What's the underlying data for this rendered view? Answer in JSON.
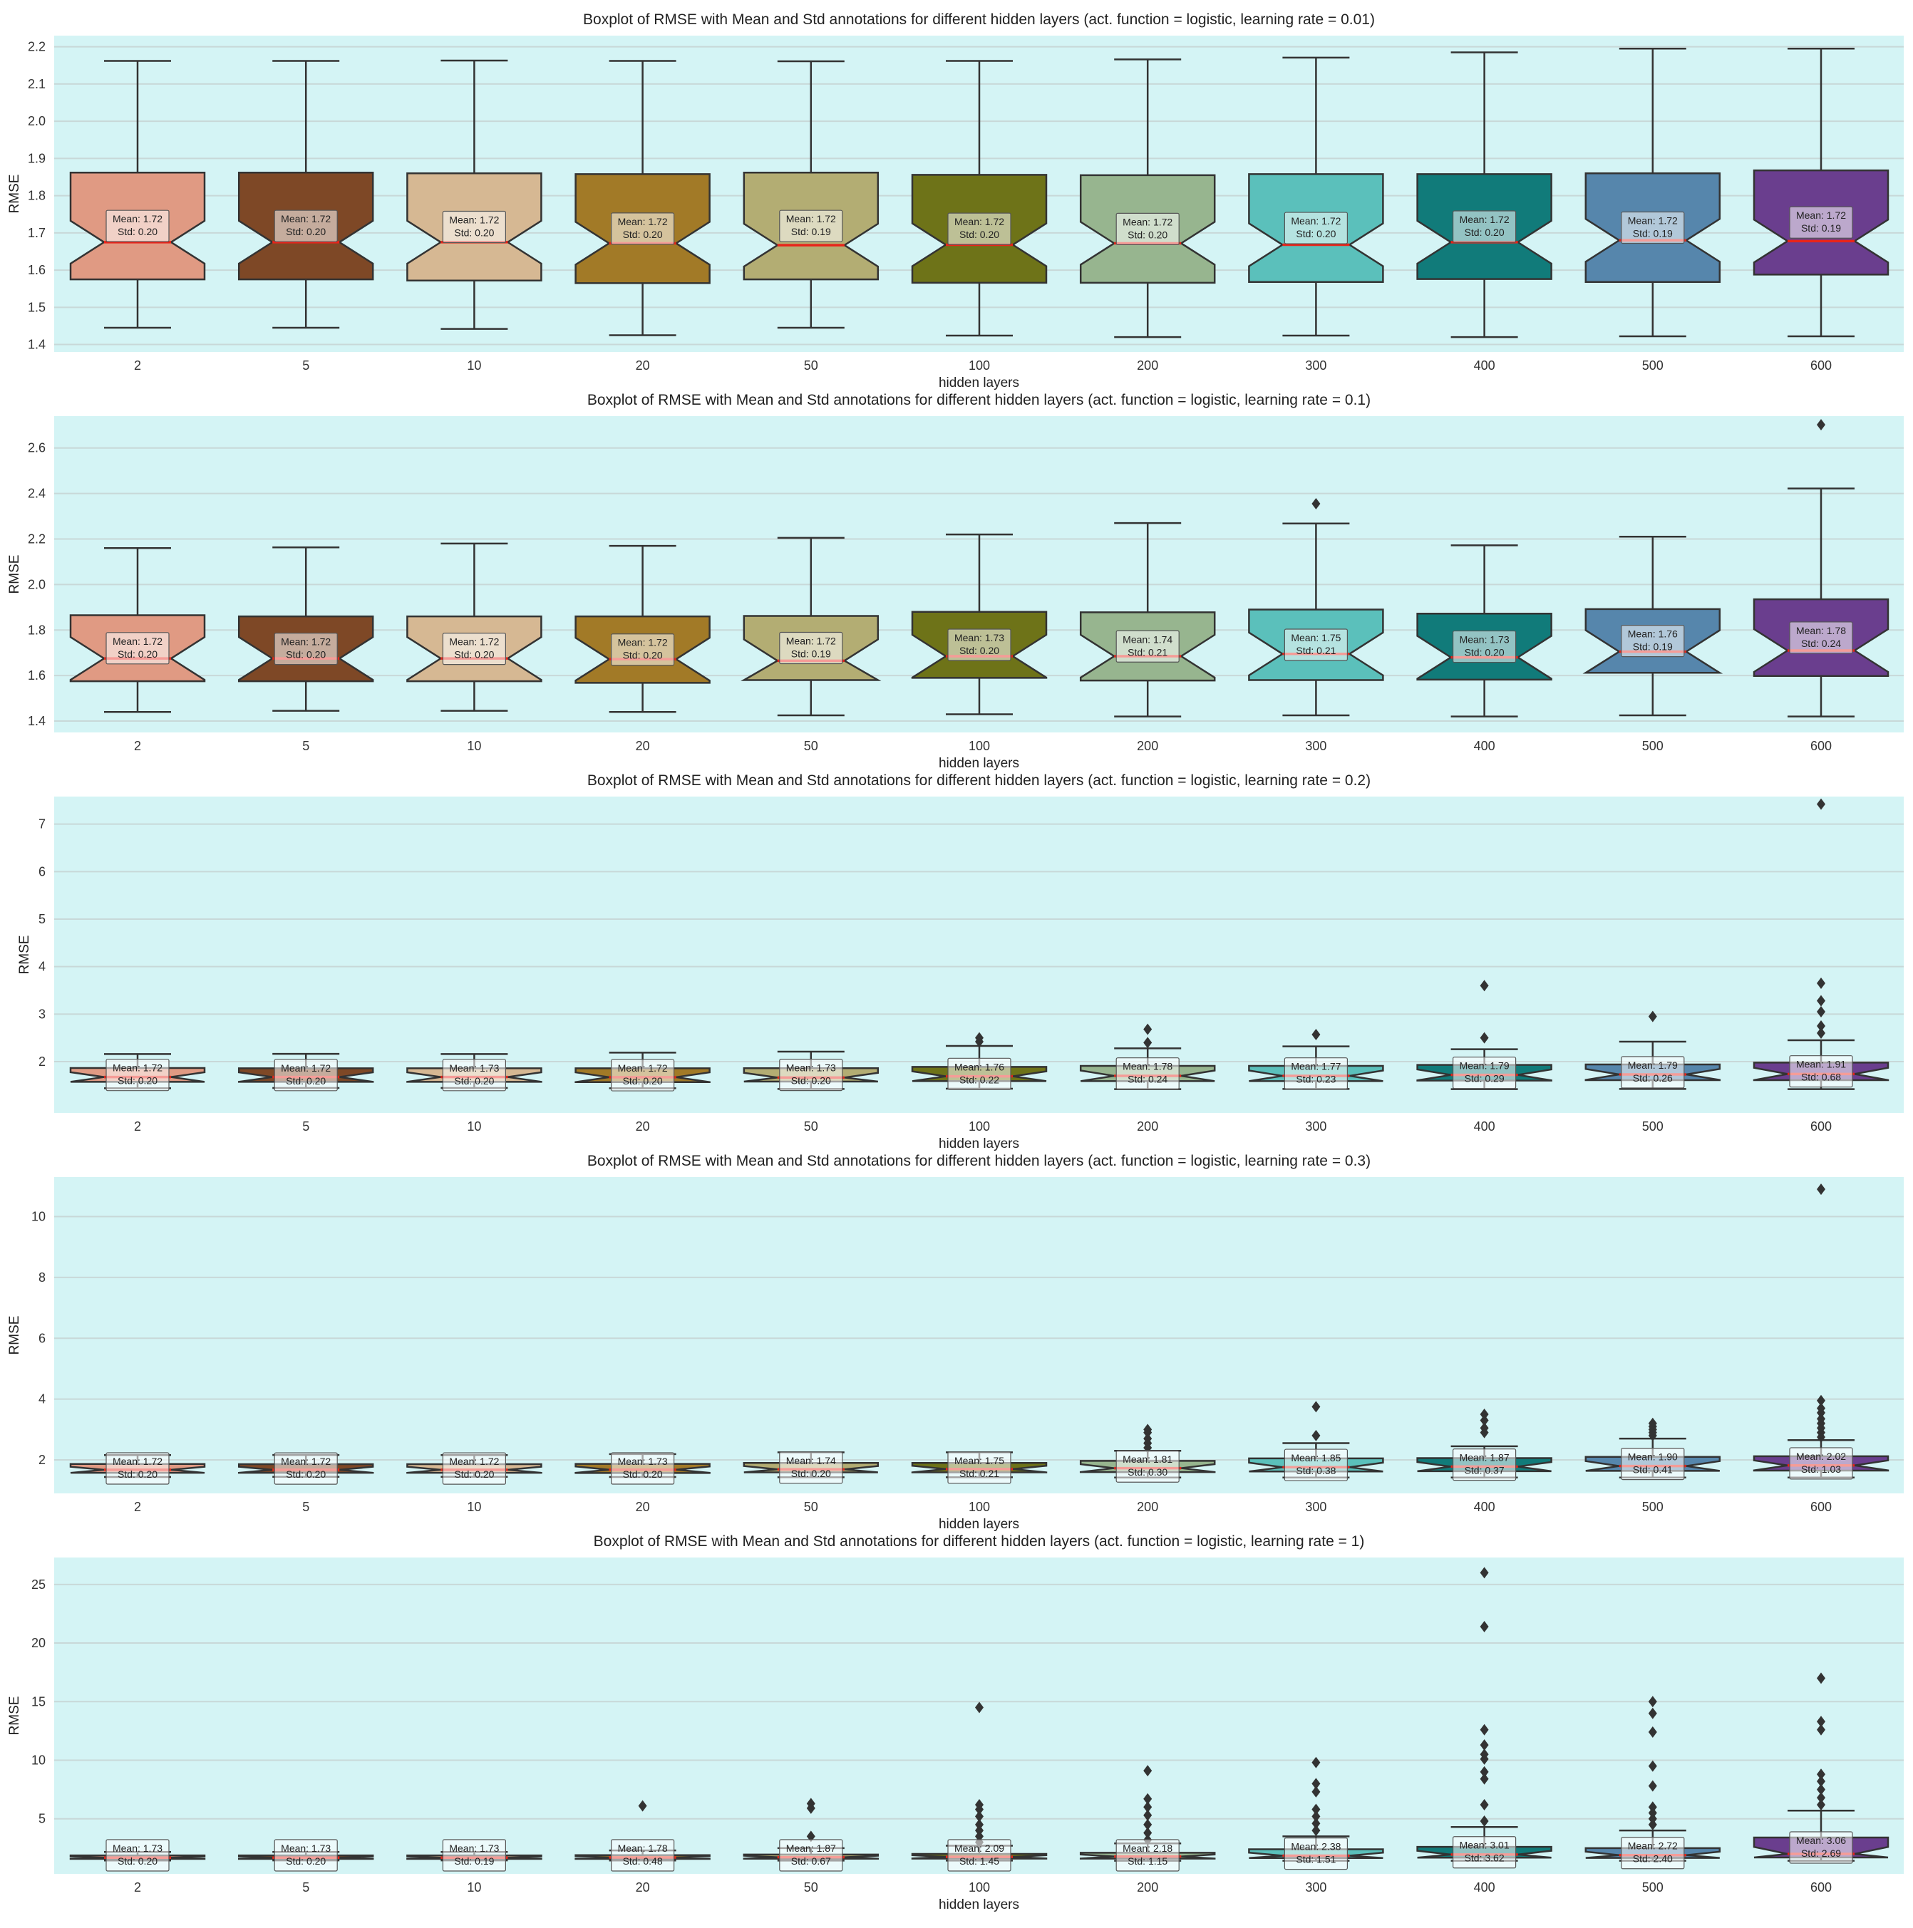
{
  "figure": {
    "xlabel": "hidden layers",
    "ylabel": "RMSE",
    "background": "#d4f4f5",
    "median_color": "#e8241a",
    "box_colors": [
      "#e09a83",
      "#7e4826",
      "#d6b893",
      "#a27a27",
      "#b3ad73",
      "#6e7318",
      "#97b58f",
      "#5bc0bb",
      "#117b7a",
      "#5686ac",
      "#6a3e8e"
    ]
  },
  "chart_data": [
    {
      "type": "box",
      "title": "Boxplot of RMSE with Mean and Std annotations for different hidden layers (act. function = logistic, learning rate = 0.01)",
      "xlabel": "hidden layers",
      "ylabel": "RMSE",
      "ylim": [
        1.38,
        2.23
      ],
      "yticks": [
        "1.4",
        "1.5",
        "1.6",
        "1.7",
        "1.8",
        "1.9",
        "2.0",
        "2.1",
        "2.2"
      ],
      "categories": [
        "2",
        "5",
        "10",
        "20",
        "50",
        "100",
        "200",
        "300",
        "400",
        "500",
        "600"
      ],
      "boxes": [
        {
          "whisker_low": 1.445,
          "q1": 1.575,
          "median": 1.675,
          "q3": 1.862,
          "whisker_high": 2.162,
          "outliers": [],
          "mean_label": "Mean: 1.72",
          "std_label": "Std: 0.20"
        },
        {
          "whisker_low": 1.445,
          "q1": 1.575,
          "median": 1.675,
          "q3": 1.862,
          "whisker_high": 2.162,
          "outliers": [],
          "mean_label": "Mean: 1.72",
          "std_label": "Std: 0.20"
        },
        {
          "whisker_low": 1.442,
          "q1": 1.572,
          "median": 1.675,
          "q3": 1.86,
          "whisker_high": 2.163,
          "outliers": [],
          "mean_label": "Mean: 1.72",
          "std_label": "Std: 0.20"
        },
        {
          "whisker_low": 1.425,
          "q1": 1.565,
          "median": 1.672,
          "q3": 1.858,
          "whisker_high": 2.162,
          "outliers": [],
          "mean_label": "Mean: 1.72",
          "std_label": "Std: 0.20"
        },
        {
          "whisker_low": 1.445,
          "q1": 1.575,
          "median": 1.667,
          "q3": 1.862,
          "whisker_high": 2.161,
          "outliers": [],
          "mean_label": "Mean: 1.72",
          "std_label": "Std: 0.19"
        },
        {
          "whisker_low": 1.424,
          "q1": 1.566,
          "median": 1.668,
          "q3": 1.856,
          "whisker_high": 2.162,
          "outliers": [],
          "mean_label": "Mean: 1.72",
          "std_label": "Std: 0.20"
        },
        {
          "whisker_low": 1.42,
          "q1": 1.566,
          "median": 1.672,
          "q3": 1.855,
          "whisker_high": 2.166,
          "outliers": [],
          "mean_label": "Mean: 1.72",
          "std_label": "Std: 0.20"
        },
        {
          "whisker_low": 1.424,
          "q1": 1.568,
          "median": 1.668,
          "q3": 1.858,
          "whisker_high": 2.171,
          "outliers": [],
          "mean_label": "Mean: 1.72",
          "std_label": "Std: 0.20"
        },
        {
          "whisker_low": 1.42,
          "q1": 1.576,
          "median": 1.675,
          "q3": 1.858,
          "whisker_high": 2.185,
          "outliers": [],
          "mean_label": "Mean: 1.72",
          "std_label": "Std: 0.20"
        },
        {
          "whisker_low": 1.422,
          "q1": 1.568,
          "median": 1.68,
          "q3": 1.86,
          "whisker_high": 2.195,
          "outliers": [],
          "mean_label": "Mean: 1.72",
          "std_label": "Std: 0.19"
        },
        {
          "whisker_low": 1.422,
          "q1": 1.588,
          "median": 1.678,
          "q3": 1.868,
          "whisker_high": 2.195,
          "outliers": [],
          "mean_label": "Mean: 1.72",
          "std_label": "Std: 0.19"
        }
      ]
    },
    {
      "type": "box",
      "title": "Boxplot of RMSE with Mean and Std annotations for different hidden layers (act. function = logistic, learning rate = 0.1)",
      "xlabel": "hidden layers",
      "ylabel": "RMSE",
      "ylim": [
        1.35,
        2.74
      ],
      "yticks": [
        "1.4",
        "1.6",
        "1.8",
        "2.0",
        "2.2",
        "2.4",
        "2.6"
      ],
      "categories": [
        "2",
        "5",
        "10",
        "20",
        "50",
        "100",
        "200",
        "300",
        "400",
        "500",
        "600"
      ],
      "boxes": [
        {
          "whisker_low": 1.44,
          "q1": 1.575,
          "median": 1.675,
          "q3": 1.865,
          "whisker_high": 2.16,
          "outliers": [],
          "mean_label": "Mean: 1.72",
          "std_label": "Std: 0.20"
        },
        {
          "whisker_low": 1.445,
          "q1": 1.575,
          "median": 1.675,
          "q3": 1.86,
          "whisker_high": 2.163,
          "outliers": [],
          "mean_label": "Mean: 1.72",
          "std_label": "Std: 0.20"
        },
        {
          "whisker_low": 1.445,
          "q1": 1.575,
          "median": 1.675,
          "q3": 1.86,
          "whisker_high": 2.18,
          "outliers": [],
          "mean_label": "Mean: 1.72",
          "std_label": "Std: 0.20"
        },
        {
          "whisker_low": 1.44,
          "q1": 1.568,
          "median": 1.672,
          "q3": 1.86,
          "whisker_high": 2.17,
          "outliers": [],
          "mean_label": "Mean: 1.72",
          "std_label": "Std: 0.20"
        },
        {
          "whisker_low": 1.425,
          "q1": 1.58,
          "median": 1.665,
          "q3": 1.862,
          "whisker_high": 2.205,
          "outliers": [],
          "mean_label": "Mean: 1.72",
          "std_label": "Std: 0.19"
        },
        {
          "whisker_low": 1.43,
          "q1": 1.59,
          "median": 1.685,
          "q3": 1.88,
          "whisker_high": 2.22,
          "outliers": [],
          "mean_label": "Mean: 1.73",
          "std_label": "Std: 0.20"
        },
        {
          "whisker_low": 1.42,
          "q1": 1.578,
          "median": 1.685,
          "q3": 1.878,
          "whisker_high": 2.27,
          "outliers": [],
          "mean_label": "Mean: 1.74",
          "std_label": "Std: 0.21"
        },
        {
          "whisker_low": 1.425,
          "q1": 1.58,
          "median": 1.695,
          "q3": 1.89,
          "whisker_high": 2.268,
          "outliers": [
            2.355
          ],
          "mean_label": "Mean: 1.75",
          "std_label": "Std: 0.21"
        },
        {
          "whisker_low": 1.42,
          "q1": 1.582,
          "median": 1.68,
          "q3": 1.872,
          "whisker_high": 2.172,
          "outliers": [],
          "mean_label": "Mean: 1.73",
          "std_label": "Std: 0.20"
        },
        {
          "whisker_low": 1.425,
          "q1": 1.612,
          "median": 1.705,
          "q3": 1.892,
          "whisker_high": 2.21,
          "outliers": [],
          "mean_label": "Mean: 1.76",
          "std_label": "Std: 0.19"
        },
        {
          "whisker_low": 1.42,
          "q1": 1.598,
          "median": 1.71,
          "q3": 1.935,
          "whisker_high": 2.422,
          "outliers": [
            2.702
          ],
          "mean_label": "Mean: 1.78",
          "std_label": "Std: 0.24"
        }
      ]
    },
    {
      "type": "box",
      "title": "Boxplot of RMSE with Mean and Std annotations for different hidden layers (act. function = logistic, learning rate = 0.2)",
      "xlabel": "hidden layers",
      "ylabel": "RMSE",
      "ylim": [
        0.92,
        7.58
      ],
      "yticks": [
        "2",
        "3",
        "4",
        "5",
        "6",
        "7"
      ],
      "categories": [
        "2",
        "5",
        "10",
        "20",
        "50",
        "100",
        "200",
        "300",
        "400",
        "500",
        "600"
      ],
      "boxes": [
        {
          "whisker_low": 1.44,
          "q1": 1.575,
          "median": 1.675,
          "q3": 1.865,
          "whisker_high": 2.16,
          "outliers": [],
          "mean_label": "Mean: 1.72",
          "std_label": "Std: 0.20"
        },
        {
          "whisker_low": 1.445,
          "q1": 1.575,
          "median": 1.675,
          "q3": 1.86,
          "whisker_high": 2.163,
          "outliers": [],
          "mean_label": "Mean: 1.72",
          "std_label": "Std: 0.20"
        },
        {
          "whisker_low": 1.445,
          "q1": 1.575,
          "median": 1.675,
          "q3": 1.86,
          "whisker_high": 2.16,
          "outliers": [],
          "mean_label": "Mean: 1.73",
          "std_label": "Std: 0.20"
        },
        {
          "whisker_low": 1.44,
          "q1": 1.568,
          "median": 1.672,
          "q3": 1.86,
          "whisker_high": 2.19,
          "outliers": [],
          "mean_label": "Mean: 1.72",
          "std_label": "Std: 0.20"
        },
        {
          "whisker_low": 1.425,
          "q1": 1.58,
          "median": 1.665,
          "q3": 1.862,
          "whisker_high": 2.21,
          "outliers": [],
          "mean_label": "Mean: 1.73",
          "std_label": "Std: 0.20"
        },
        {
          "whisker_low": 1.43,
          "q1": 1.59,
          "median": 1.69,
          "q3": 1.89,
          "whisker_high": 2.33,
          "outliers": [
            2.42,
            2.5
          ],
          "mean_label": "Mean: 1.76",
          "std_label": "Std: 0.22"
        },
        {
          "whisker_low": 1.42,
          "q1": 1.59,
          "median": 1.7,
          "q3": 1.91,
          "whisker_high": 2.28,
          "outliers": [
            2.4,
            2.68
          ],
          "mean_label": "Mean: 1.78",
          "std_label": "Std: 0.24"
        },
        {
          "whisker_low": 1.425,
          "q1": 1.59,
          "median": 1.7,
          "q3": 1.91,
          "whisker_high": 2.32,
          "outliers": [
            2.57
          ],
          "mean_label": "Mean: 1.77",
          "std_label": "Std: 0.23"
        },
        {
          "whisker_low": 1.42,
          "q1": 1.6,
          "median": 1.72,
          "q3": 1.93,
          "whisker_high": 2.26,
          "outliers": [
            2.5,
            3.6
          ],
          "mean_label": "Mean: 1.79",
          "std_label": "Std: 0.29"
        },
        {
          "whisker_low": 1.425,
          "q1": 1.61,
          "median": 1.73,
          "q3": 1.94,
          "whisker_high": 2.42,
          "outliers": [
            2.95
          ],
          "mean_label": "Mean: 1.79",
          "std_label": "Std: 0.26"
        },
        {
          "whisker_low": 1.42,
          "q1": 1.61,
          "median": 1.74,
          "q3": 1.98,
          "whisker_high": 2.45,
          "outliers": [
            2.6,
            2.75,
            3.05,
            3.28,
            3.65,
            7.42
          ],
          "mean_label": "Mean: 1.91",
          "std_label": "Std: 0.68"
        }
      ]
    },
    {
      "type": "box",
      "title": "Boxplot of RMSE with Mean and Std annotations for different hidden layers (act. function = logistic, learning rate = 0.3)",
      "xlabel": "hidden layers",
      "ylabel": "RMSE",
      "ylim": [
        0.9,
        11.3
      ],
      "yticks": [
        "2",
        "4",
        "6",
        "8",
        "10"
      ],
      "categories": [
        "2",
        "5",
        "10",
        "20",
        "50",
        "100",
        "200",
        "300",
        "400",
        "500",
        "600"
      ],
      "boxes": [
        {
          "whisker_low": 1.44,
          "q1": 1.575,
          "median": 1.675,
          "q3": 1.865,
          "whisker_high": 2.16,
          "outliers": [],
          "mean_label": "Mean: 1.72",
          "std_label": "Std: 0.20"
        },
        {
          "whisker_low": 1.445,
          "q1": 1.575,
          "median": 1.675,
          "q3": 1.86,
          "whisker_high": 2.163,
          "outliers": [],
          "mean_label": "Mean: 1.72",
          "std_label": "Std: 0.20"
        },
        {
          "whisker_low": 1.445,
          "q1": 1.575,
          "median": 1.675,
          "q3": 1.86,
          "whisker_high": 2.16,
          "outliers": [],
          "mean_label": "Mean: 1.72",
          "std_label": "Std: 0.20"
        },
        {
          "whisker_low": 1.44,
          "q1": 1.57,
          "median": 1.68,
          "q3": 1.87,
          "whisker_high": 2.19,
          "outliers": [],
          "mean_label": "Mean: 1.73",
          "std_label": "Std: 0.20"
        },
        {
          "whisker_low": 1.43,
          "q1": 1.59,
          "median": 1.69,
          "q3": 1.9,
          "whisker_high": 2.25,
          "outliers": [],
          "mean_label": "Mean: 1.74",
          "std_label": "Std: 0.20"
        },
        {
          "whisker_low": 1.43,
          "q1": 1.59,
          "median": 1.7,
          "q3": 1.9,
          "whisker_high": 2.25,
          "outliers": [],
          "mean_label": "Mean: 1.75",
          "std_label": "Std: 0.21"
        },
        {
          "whisker_low": 1.42,
          "q1": 1.6,
          "median": 1.73,
          "q3": 1.97,
          "whisker_high": 2.3,
          "outliers": [
            2.4,
            2.55,
            2.7,
            2.9,
            3.0
          ],
          "mean_label": "Mean: 1.81",
          "std_label": "Std: 0.30"
        },
        {
          "whisker_low": 1.42,
          "q1": 1.62,
          "median": 1.76,
          "q3": 2.05,
          "whisker_high": 2.55,
          "outliers": [
            2.8,
            3.75
          ],
          "mean_label": "Mean: 1.85",
          "std_label": "Std: 0.38"
        },
        {
          "whisker_low": 1.42,
          "q1": 1.63,
          "median": 1.78,
          "q3": 2.06,
          "whisker_high": 2.45,
          "outliers": [
            2.9,
            3.05,
            3.3,
            3.5
          ],
          "mean_label": "Mean: 1.87",
          "std_label": "Std: 0.37"
        },
        {
          "whisker_low": 1.42,
          "q1": 1.64,
          "median": 1.8,
          "q3": 2.1,
          "whisker_high": 2.7,
          "outliers": [
            2.8,
            2.9,
            3.0,
            3.1,
            3.2
          ],
          "mean_label": "Mean: 1.90",
          "std_label": "Std: 0.41"
        },
        {
          "whisker_low": 1.42,
          "q1": 1.65,
          "median": 1.82,
          "q3": 2.12,
          "whisker_high": 2.65,
          "outliers": [
            2.75,
            2.9,
            3.05,
            3.2,
            3.35,
            3.55,
            3.7,
            3.95,
            10.9
          ],
          "mean_label": "Mean: 2.02",
          "std_label": "Std: 1.03"
        }
      ]
    },
    {
      "type": "box",
      "title": "Boxplot of RMSE with Mean and Std annotations for different hidden layers (act. function = logistic, learning rate = 1)",
      "xlabel": "hidden layers",
      "ylabel": "RMSE",
      "ylim": [
        0.3,
        27.3
      ],
      "yticks": [
        "5",
        "10",
        "15",
        "20",
        "25"
      ],
      "categories": [
        "2",
        "5",
        "10",
        "20",
        "50",
        "100",
        "200",
        "300",
        "400",
        "500",
        "600"
      ],
      "boxes": [
        {
          "whisker_low": 1.44,
          "q1": 1.575,
          "median": 1.68,
          "q3": 1.87,
          "whisker_high": 2.17,
          "outliers": [],
          "mean_label": "Mean: 1.73",
          "std_label": "Std: 0.20"
        },
        {
          "whisker_low": 1.445,
          "q1": 1.575,
          "median": 1.68,
          "q3": 1.87,
          "whisker_high": 2.17,
          "outliers": [],
          "mean_label": "Mean: 1.73",
          "std_label": "Std: 0.20"
        },
        {
          "whisker_low": 1.445,
          "q1": 1.575,
          "median": 1.68,
          "q3": 1.87,
          "whisker_high": 2.17,
          "outliers": [],
          "mean_label": "Mean: 1.73",
          "std_label": "Std: 0.19"
        },
        {
          "whisker_low": 1.44,
          "q1": 1.58,
          "median": 1.7,
          "q3": 1.9,
          "whisker_high": 2.3,
          "outliers": [
            6.1
          ],
          "mean_label": "Mean: 1.78",
          "std_label": "Std: 0.48"
        },
        {
          "whisker_low": 1.43,
          "q1": 1.59,
          "median": 1.72,
          "q3": 1.95,
          "whisker_high": 2.5,
          "outliers": [
            3.5,
            5.9,
            6.3
          ],
          "mean_label": "Mean: 1.87",
          "std_label": "Std: 0.67"
        },
        {
          "whisker_low": 1.43,
          "q1": 1.6,
          "median": 1.75,
          "q3": 2.0,
          "whisker_high": 2.7,
          "outliers": [
            3.0,
            3.5,
            4.0,
            4.5,
            5.2,
            5.8,
            6.2,
            14.5
          ],
          "mean_label": "Mean: 2.09",
          "std_label": "Std: 1.45"
        },
        {
          "whisker_low": 1.42,
          "q1": 1.6,
          "median": 1.78,
          "q3": 2.1,
          "whisker_high": 2.9,
          "outliers": [
            3.2,
            3.8,
            4.5,
            5.3,
            6.0,
            6.7,
            9.1
          ],
          "mean_label": "Mean: 2.18",
          "std_label": "Std: 1.15"
        },
        {
          "whisker_low": 1.42,
          "q1": 1.65,
          "median": 1.85,
          "q3": 2.4,
          "whisker_high": 3.5,
          "outliers": [
            4.0,
            4.6,
            5.2,
            5.8,
            7.3,
            8.0,
            9.8
          ],
          "mean_label": "Mean: 2.38",
          "std_label": "Std: 1.51"
        },
        {
          "whisker_low": 1.42,
          "q1": 1.68,
          "median": 1.95,
          "q3": 2.6,
          "whisker_high": 4.3,
          "outliers": [
            4.8,
            6.2,
            8.4,
            9.0,
            10.1,
            10.5,
            11.3,
            12.6,
            21.4,
            26.0
          ],
          "mean_label": "Mean: 3.01",
          "std_label": "Std: 3.62"
        },
        {
          "whisker_low": 1.42,
          "q1": 1.66,
          "median": 1.9,
          "q3": 2.5,
          "whisker_high": 4.0,
          "outliers": [
            4.5,
            5.0,
            5.5,
            6.0,
            7.8,
            9.5,
            12.4,
            14.0,
            15.0
          ],
          "mean_label": "Mean: 2.72",
          "std_label": "Std: 2.40"
        },
        {
          "whisker_low": 1.42,
          "q1": 1.7,
          "median": 2.0,
          "q3": 3.4,
          "whisker_high": 5.7,
          "outliers": [
            6.2,
            6.8,
            7.5,
            8.2,
            8.8,
            12.6,
            13.3,
            17.0
          ],
          "mean_label": "Mean: 3.06",
          "std_label": "Std: 2.69"
        }
      ]
    }
  ]
}
